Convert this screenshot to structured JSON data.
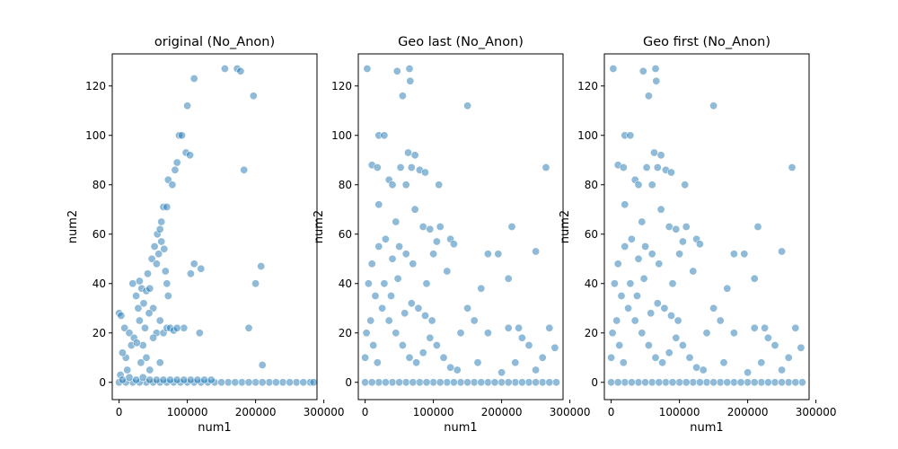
{
  "chart_data": [
    {
      "type": "scatter",
      "title": "original (No_Anon)",
      "xlabel": "num1",
      "ylabel": "num2",
      "xlim": [
        -10000,
        290000
      ],
      "ylim": [
        -7,
        133
      ],
      "xticks": [
        0,
        100000,
        200000,
        300000
      ],
      "yticks": [
        0,
        20,
        40,
        60,
        80,
        100,
        120
      ],
      "color": "#1f77b4",
      "points": [
        [
          0,
          28
        ],
        [
          3000,
          27
        ],
        [
          8000,
          22
        ],
        [
          15000,
          20
        ],
        [
          22000,
          18
        ],
        [
          28000,
          30
        ],
        [
          33000,
          38
        ],
        [
          38000,
          22
        ],
        [
          42000,
          44
        ],
        [
          48000,
          50
        ],
        [
          52000,
          55
        ],
        [
          56000,
          60
        ],
        [
          60000,
          62
        ],
        [
          62000,
          65
        ],
        [
          65000,
          71
        ],
        [
          70000,
          71
        ],
        [
          72000,
          82
        ],
        [
          78000,
          80
        ],
        [
          82000,
          86
        ],
        [
          85000,
          89
        ],
        [
          88000,
          100
        ],
        [
          92000,
          100
        ],
        [
          100000,
          112
        ],
        [
          98000,
          93
        ],
        [
          104000,
          92
        ],
        [
          110000,
          123
        ],
        [
          95000,
          22
        ],
        [
          110000,
          48
        ],
        [
          105000,
          44
        ],
        [
          120000,
          46
        ],
        [
          118000,
          20
        ],
        [
          155000,
          127
        ],
        [
          173000,
          127
        ],
        [
          178000,
          126
        ],
        [
          183000,
          86
        ],
        [
          190000,
          22
        ],
        [
          197000,
          116
        ],
        [
          200000,
          40
        ],
        [
          208000,
          47
        ],
        [
          210000,
          7
        ],
        [
          20000,
          40
        ],
        [
          25000,
          35
        ],
        [
          30000,
          25
        ],
        [
          35000,
          15
        ],
        [
          40000,
          10
        ],
        [
          45000,
          5
        ],
        [
          50000,
          30
        ],
        [
          55000,
          20
        ],
        [
          60000,
          8
        ],
        [
          65000,
          20
        ],
        [
          70000,
          22
        ],
        [
          75000,
          22
        ],
        [
          80000,
          21
        ],
        [
          85000,
          22
        ],
        [
          10000,
          10
        ],
        [
          12000,
          5
        ],
        [
          18000,
          15
        ],
        [
          5000,
          12
        ],
        [
          2000,
          3
        ],
        [
          30000,
          41
        ],
        [
          40000,
          37
        ],
        [
          45000,
          38
        ],
        [
          55000,
          48
        ],
        [
          58000,
          52
        ],
        [
          62000,
          57
        ],
        [
          66000,
          54
        ],
        [
          68000,
          45
        ],
        [
          70000,
          40
        ],
        [
          72000,
          35
        ],
        [
          60000,
          25
        ],
        [
          50000,
          18
        ],
        [
          26000,
          16
        ],
        [
          32000,
          8
        ],
        [
          36000,
          32
        ],
        [
          44000,
          28
        ],
        [
          0,
          0
        ],
        [
          20000,
          0
        ],
        [
          40000,
          0
        ],
        [
          60000,
          0
        ],
        [
          80000,
          0
        ],
        [
          100000,
          0
        ],
        [
          120000,
          0
        ],
        [
          140000,
          0
        ],
        [
          160000,
          0
        ],
        [
          180000,
          0
        ],
        [
          200000,
          0
        ],
        [
          220000,
          0
        ],
        [
          240000,
          0
        ],
        [
          260000,
          0
        ],
        [
          280000,
          0
        ],
        [
          10000,
          0
        ],
        [
          30000,
          0
        ],
        [
          50000,
          0
        ],
        [
          70000,
          0
        ],
        [
          90000,
          0
        ],
        [
          110000,
          0
        ],
        [
          130000,
          0
        ],
        [
          150000,
          0
        ],
        [
          170000,
          0
        ],
        [
          190000,
          0
        ],
        [
          210000,
          0
        ],
        [
          230000,
          0
        ],
        [
          250000,
          0
        ],
        [
          270000,
          0
        ],
        [
          285000,
          0
        ],
        [
          5000,
          1
        ],
        [
          15000,
          2
        ],
        [
          25000,
          1
        ],
        [
          35000,
          2
        ],
        [
          45000,
          1
        ],
        [
          55000,
          1
        ],
        [
          65000,
          1
        ],
        [
          75000,
          1
        ],
        [
          85000,
          1
        ],
        [
          95000,
          1
        ],
        [
          105000,
          1
        ],
        [
          115000,
          1
        ],
        [
          125000,
          1
        ],
        [
          135000,
          1
        ]
      ]
    },
    {
      "type": "scatter",
      "title": "Geo last (No_Anon)",
      "xlabel": "num1",
      "ylabel": "num2",
      "xlim": [
        -10000,
        290000
      ],
      "ylim": [
        -7,
        133
      ],
      "xticks": [
        0,
        100000,
        200000,
        300000
      ],
      "yticks": [
        0,
        20,
        40,
        60,
        80,
        100,
        120
      ],
      "color": "#1f77b4",
      "points": [
        [
          3000,
          127
        ],
        [
          47000,
          126
        ],
        [
          65000,
          127
        ],
        [
          66000,
          122
        ],
        [
          55000,
          116
        ],
        [
          150000,
          112
        ],
        [
          20000,
          100
        ],
        [
          28000,
          100
        ],
        [
          10000,
          88
        ],
        [
          18000,
          87
        ],
        [
          52000,
          87
        ],
        [
          63000,
          93
        ],
        [
          68000,
          87
        ],
        [
          73000,
          92
        ],
        [
          80000,
          86
        ],
        [
          88000,
          85
        ],
        [
          20000,
          72
        ],
        [
          35000,
          82
        ],
        [
          40000,
          80
        ],
        [
          60000,
          80
        ],
        [
          73000,
          70
        ],
        [
          108000,
          80
        ],
        [
          110000,
          63
        ],
        [
          125000,
          58
        ],
        [
          45000,
          65
        ],
        [
          85000,
          63
        ],
        [
          95000,
          62
        ],
        [
          105000,
          57
        ],
        [
          100000,
          52
        ],
        [
          130000,
          56
        ],
        [
          180000,
          52
        ],
        [
          195000,
          52
        ],
        [
          210000,
          42
        ],
        [
          215000,
          63
        ],
        [
          250000,
          53
        ],
        [
          265000,
          87
        ],
        [
          170000,
          38
        ],
        [
          150000,
          30
        ],
        [
          160000,
          25
        ],
        [
          140000,
          20
        ],
        [
          180000,
          20
        ],
        [
          210000,
          22
        ],
        [
          225000,
          22
        ],
        [
          230000,
          18
        ],
        [
          240000,
          15
        ],
        [
          260000,
          10
        ],
        [
          270000,
          22
        ],
        [
          278000,
          14
        ],
        [
          120000,
          45
        ],
        [
          90000,
          40
        ],
        [
          70000,
          48
        ],
        [
          60000,
          52
        ],
        [
          50000,
          55
        ],
        [
          40000,
          50
        ],
        [
          30000,
          58
        ],
        [
          20000,
          55
        ],
        [
          10000,
          48
        ],
        [
          5000,
          40
        ],
        [
          15000,
          35
        ],
        [
          25000,
          30
        ],
        [
          35000,
          25
        ],
        [
          45000,
          20
        ],
        [
          55000,
          15
        ],
        [
          65000,
          10
        ],
        [
          75000,
          8
        ],
        [
          85000,
          12
        ],
        [
          95000,
          18
        ],
        [
          105000,
          15
        ],
        [
          115000,
          10
        ],
        [
          125000,
          6
        ],
        [
          135000,
          5
        ],
        [
          165000,
          8
        ],
        [
          200000,
          4
        ],
        [
          220000,
          8
        ],
        [
          250000,
          5
        ],
        [
          0,
          10
        ],
        [
          2000,
          20
        ],
        [
          8000,
          25
        ],
        [
          12000,
          15
        ],
        [
          18000,
          8
        ],
        [
          28000,
          40
        ],
        [
          38000,
          35
        ],
        [
          48000,
          42
        ],
        [
          58000,
          28
        ],
        [
          68000,
          32
        ],
        [
          78000,
          30
        ],
        [
          88000,
          27
        ],
        [
          98000,
          25
        ],
        [
          0,
          0
        ],
        [
          20000,
          0
        ],
        [
          40000,
          0
        ],
        [
          60000,
          0
        ],
        [
          80000,
          0
        ],
        [
          100000,
          0
        ],
        [
          120000,
          0
        ],
        [
          140000,
          0
        ],
        [
          160000,
          0
        ],
        [
          180000,
          0
        ],
        [
          200000,
          0
        ],
        [
          220000,
          0
        ],
        [
          240000,
          0
        ],
        [
          260000,
          0
        ],
        [
          280000,
          0
        ],
        [
          10000,
          0
        ],
        [
          30000,
          0
        ],
        [
          50000,
          0
        ],
        [
          70000,
          0
        ],
        [
          90000,
          0
        ],
        [
          110000,
          0
        ],
        [
          130000,
          0
        ],
        [
          150000,
          0
        ],
        [
          170000,
          0
        ],
        [
          190000,
          0
        ],
        [
          210000,
          0
        ],
        [
          230000,
          0
        ],
        [
          250000,
          0
        ],
        [
          270000,
          0
        ]
      ]
    },
    {
      "type": "scatter",
      "title": "Geo first (No_Anon)",
      "xlabel": "num1",
      "ylabel": "num2",
      "xlim": [
        -10000,
        290000
      ],
      "ylim": [
        -7,
        133
      ],
      "xticks": [
        0,
        100000,
        200000,
        300000
      ],
      "yticks": [
        0,
        20,
        40,
        60,
        80,
        100,
        120
      ],
      "color": "#1f77b4",
      "points": [
        [
          3000,
          127
        ],
        [
          47000,
          126
        ],
        [
          65000,
          127
        ],
        [
          66000,
          122
        ],
        [
          55000,
          116
        ],
        [
          150000,
          112
        ],
        [
          20000,
          100
        ],
        [
          28000,
          100
        ],
        [
          10000,
          88
        ],
        [
          18000,
          87
        ],
        [
          52000,
          87
        ],
        [
          63000,
          93
        ],
        [
          68000,
          87
        ],
        [
          73000,
          92
        ],
        [
          80000,
          86
        ],
        [
          88000,
          85
        ],
        [
          20000,
          72
        ],
        [
          35000,
          82
        ],
        [
          40000,
          80
        ],
        [
          60000,
          80
        ],
        [
          73000,
          70
        ],
        [
          108000,
          80
        ],
        [
          110000,
          63
        ],
        [
          125000,
          58
        ],
        [
          45000,
          65
        ],
        [
          85000,
          63
        ],
        [
          95000,
          62
        ],
        [
          105000,
          57
        ],
        [
          100000,
          52
        ],
        [
          130000,
          56
        ],
        [
          180000,
          52
        ],
        [
          195000,
          52
        ],
        [
          210000,
          42
        ],
        [
          215000,
          63
        ],
        [
          250000,
          53
        ],
        [
          265000,
          87
        ],
        [
          170000,
          38
        ],
        [
          150000,
          30
        ],
        [
          160000,
          25
        ],
        [
          140000,
          20
        ],
        [
          180000,
          20
        ],
        [
          210000,
          22
        ],
        [
          225000,
          22
        ],
        [
          230000,
          18
        ],
        [
          240000,
          15
        ],
        [
          260000,
          10
        ],
        [
          270000,
          22
        ],
        [
          278000,
          14
        ],
        [
          120000,
          45
        ],
        [
          90000,
          40
        ],
        [
          70000,
          48
        ],
        [
          60000,
          52
        ],
        [
          50000,
          55
        ],
        [
          40000,
          50
        ],
        [
          30000,
          58
        ],
        [
          20000,
          55
        ],
        [
          10000,
          48
        ],
        [
          5000,
          40
        ],
        [
          15000,
          35
        ],
        [
          25000,
          30
        ],
        [
          35000,
          25
        ],
        [
          45000,
          20
        ],
        [
          55000,
          15
        ],
        [
          65000,
          10
        ],
        [
          75000,
          8
        ],
        [
          85000,
          12
        ],
        [
          95000,
          18
        ],
        [
          105000,
          15
        ],
        [
          115000,
          10
        ],
        [
          125000,
          6
        ],
        [
          135000,
          5
        ],
        [
          165000,
          8
        ],
        [
          200000,
          4
        ],
        [
          220000,
          8
        ],
        [
          250000,
          5
        ],
        [
          0,
          10
        ],
        [
          2000,
          20
        ],
        [
          8000,
          25
        ],
        [
          12000,
          15
        ],
        [
          18000,
          8
        ],
        [
          28000,
          40
        ],
        [
          38000,
          35
        ],
        [
          48000,
          42
        ],
        [
          58000,
          28
        ],
        [
          68000,
          32
        ],
        [
          78000,
          30
        ],
        [
          88000,
          27
        ],
        [
          98000,
          25
        ],
        [
          0,
          0
        ],
        [
          20000,
          0
        ],
        [
          40000,
          0
        ],
        [
          60000,
          0
        ],
        [
          80000,
          0
        ],
        [
          100000,
          0
        ],
        [
          120000,
          0
        ],
        [
          140000,
          0
        ],
        [
          160000,
          0
        ],
        [
          180000,
          0
        ],
        [
          200000,
          0
        ],
        [
          220000,
          0
        ],
        [
          240000,
          0
        ],
        [
          260000,
          0
        ],
        [
          280000,
          0
        ],
        [
          10000,
          0
        ],
        [
          30000,
          0
        ],
        [
          50000,
          0
        ],
        [
          70000,
          0
        ],
        [
          90000,
          0
        ],
        [
          110000,
          0
        ],
        [
          130000,
          0
        ],
        [
          150000,
          0
        ],
        [
          170000,
          0
        ],
        [
          190000,
          0
        ],
        [
          210000,
          0
        ],
        [
          230000,
          0
        ],
        [
          250000,
          0
        ],
        [
          270000,
          0
        ]
      ]
    }
  ]
}
